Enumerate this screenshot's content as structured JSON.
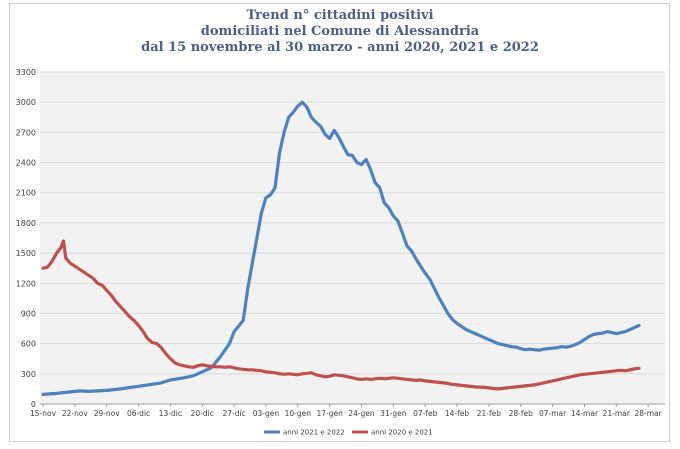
{
  "chart_data": {
    "type": "line",
    "title_lines": [
      "Trend n° cittadini positivi",
      "domiciliati nel Comune di Alessandria",
      "dal 15 novembre al 30 marzo - anni 2020, 2021 e 2022"
    ],
    "xlabel": "",
    "ylabel": "",
    "ylim": [
      0,
      3300
    ],
    "yticks": [
      0,
      300,
      600,
      900,
      1200,
      1500,
      1800,
      2100,
      2400,
      2700,
      3000,
      3300
    ],
    "x_tick_labels": [
      "15-nov",
      "22-nov",
      "29-nov",
      "06-dic",
      "13-dic",
      "20-dic",
      "27-dic",
      "03-gen",
      "10-gen",
      "17-gen",
      "24-gen",
      "31-gen",
      "07-feb",
      "14-feb",
      "21-feb",
      "28-feb",
      "07-mar",
      "14-mar",
      "21-mar",
      "28-mar"
    ],
    "x_tick_days": [
      0,
      7,
      14,
      21,
      28,
      35,
      42,
      49,
      56,
      63,
      70,
      77,
      84,
      91,
      98,
      105,
      112,
      119,
      126,
      133
    ],
    "xlim_days": [
      0,
      136
    ],
    "grid": "horizontal",
    "legend_position": "bottom",
    "series": [
      {
        "name": "anni 2021 e 2022",
        "color": "#4f81bd",
        "points": [
          [
            0,
            95
          ],
          [
            3,
            105
          ],
          [
            6,
            120
          ],
          [
            8,
            130
          ],
          [
            10,
            125
          ],
          [
            14,
            135
          ],
          [
            17,
            150
          ],
          [
            20,
            170
          ],
          [
            23,
            190
          ],
          [
            26,
            210
          ],
          [
            28,
            240
          ],
          [
            31,
            260
          ],
          [
            33,
            280
          ],
          [
            35,
            320
          ],
          [
            37,
            360
          ],
          [
            39,
            470
          ],
          [
            41,
            600
          ],
          [
            42,
            720
          ],
          [
            44,
            830
          ],
          [
            45,
            1150
          ],
          [
            46,
            1400
          ],
          [
            47,
            1650
          ],
          [
            48,
            1900
          ],
          [
            49,
            2050
          ],
          [
            50,
            2080
          ],
          [
            51,
            2150
          ],
          [
            52,
            2500
          ],
          [
            53,
            2700
          ],
          [
            54,
            2850
          ],
          [
            55,
            2900
          ],
          [
            56,
            2960
          ],
          [
            57,
            3000
          ],
          [
            58,
            2950
          ],
          [
            59,
            2850
          ],
          [
            60,
            2800
          ],
          [
            61,
            2760
          ],
          [
            62,
            2680
          ],
          [
            63,
            2640
          ],
          [
            64,
            2720
          ],
          [
            65,
            2650
          ],
          [
            66,
            2560
          ],
          [
            67,
            2480
          ],
          [
            68,
            2470
          ],
          [
            69,
            2400
          ],
          [
            70,
            2380
          ],
          [
            71,
            2430
          ],
          [
            72,
            2330
          ],
          [
            73,
            2200
          ],
          [
            74,
            2150
          ],
          [
            75,
            2000
          ],
          [
            76,
            1950
          ],
          [
            77,
            1870
          ],
          [
            78,
            1820
          ],
          [
            79,
            1700
          ],
          [
            80,
            1570
          ],
          [
            81,
            1520
          ],
          [
            82,
            1440
          ],
          [
            83,
            1370
          ],
          [
            84,
            1300
          ],
          [
            85,
            1240
          ],
          [
            86,
            1150
          ],
          [
            87,
            1060
          ],
          [
            88,
            980
          ],
          [
            89,
            900
          ],
          [
            90,
            840
          ],
          [
            91,
            800
          ],
          [
            92,
            770
          ],
          [
            93,
            740
          ],
          [
            94,
            720
          ],
          [
            95,
            700
          ],
          [
            96,
            680
          ],
          [
            97,
            660
          ],
          [
            98,
            640
          ],
          [
            99,
            620
          ],
          [
            100,
            600
          ],
          [
            101,
            590
          ],
          [
            102,
            580
          ],
          [
            103,
            570
          ],
          [
            104,
            565
          ],
          [
            105,
            550
          ],
          [
            106,
            540
          ],
          [
            107,
            545
          ],
          [
            108,
            540
          ],
          [
            109,
            535
          ],
          [
            110,
            545
          ],
          [
            111,
            550
          ],
          [
            112,
            555
          ],
          [
            113,
            560
          ],
          [
            114,
            570
          ],
          [
            115,
            565
          ],
          [
            116,
            575
          ],
          [
            117,
            590
          ],
          [
            118,
            610
          ],
          [
            119,
            640
          ],
          [
            120,
            670
          ],
          [
            121,
            690
          ],
          [
            122,
            700
          ],
          [
            123,
            705
          ],
          [
            124,
            720
          ],
          [
            125,
            710
          ],
          [
            126,
            700
          ],
          [
            127,
            710
          ],
          [
            128,
            720
          ],
          [
            129,
            740
          ],
          [
            130,
            760
          ],
          [
            131,
            780
          ]
        ]
      },
      {
        "name": "anni 2020 e 2021",
        "color": "#c0504d",
        "points": [
          [
            0,
            1350
          ],
          [
            1,
            1360
          ],
          [
            2,
            1420
          ],
          [
            3,
            1500
          ],
          [
            4,
            1560
          ],
          [
            4.5,
            1620
          ],
          [
            5,
            1450
          ],
          [
            6,
            1400
          ],
          [
            7,
            1370
          ],
          [
            8,
            1340
          ],
          [
            9,
            1310
          ],
          [
            10,
            1280
          ],
          [
            11,
            1250
          ],
          [
            12,
            1200
          ],
          [
            13,
            1180
          ],
          [
            14,
            1130
          ],
          [
            15,
            1080
          ],
          [
            16,
            1020
          ],
          [
            17,
            970
          ],
          [
            18,
            920
          ],
          [
            19,
            870
          ],
          [
            20,
            830
          ],
          [
            21,
            780
          ],
          [
            22,
            720
          ],
          [
            23,
            650
          ],
          [
            24,
            610
          ],
          [
            25,
            600
          ],
          [
            26,
            560
          ],
          [
            27,
            500
          ],
          [
            28,
            450
          ],
          [
            29,
            410
          ],
          [
            30,
            390
          ],
          [
            31,
            380
          ],
          [
            32,
            370
          ],
          [
            33,
            365
          ],
          [
            34,
            380
          ],
          [
            35,
            390
          ],
          [
            36,
            380
          ],
          [
            37,
            375
          ],
          [
            38,
            370
          ],
          [
            39,
            370
          ],
          [
            40,
            365
          ],
          [
            41,
            370
          ],
          [
            42,
            360
          ],
          [
            43,
            350
          ],
          [
            44,
            345
          ],
          [
            45,
            340
          ],
          [
            46,
            340
          ],
          [
            47,
            335
          ],
          [
            48,
            330
          ],
          [
            49,
            320
          ],
          [
            50,
            315
          ],
          [
            51,
            310
          ],
          [
            52,
            300
          ],
          [
            53,
            295
          ],
          [
            54,
            300
          ],
          [
            55,
            295
          ],
          [
            56,
            290
          ],
          [
            57,
            300
          ],
          [
            58,
            305
          ],
          [
            59,
            310
          ],
          [
            60,
            290
          ],
          [
            61,
            280
          ],
          [
            62,
            270
          ],
          [
            63,
            275
          ],
          [
            64,
            290
          ],
          [
            65,
            285
          ],
          [
            66,
            280
          ],
          [
            67,
            270
          ],
          [
            68,
            260
          ],
          [
            69,
            250
          ],
          [
            70,
            245
          ],
          [
            71,
            250
          ],
          [
            72,
            245
          ],
          [
            73,
            250
          ],
          [
            74,
            255
          ],
          [
            75,
            250
          ],
          [
            76,
            255
          ],
          [
            77,
            260
          ],
          [
            78,
            255
          ],
          [
            79,
            250
          ],
          [
            80,
            245
          ],
          [
            81,
            240
          ],
          [
            82,
            235
          ],
          [
            83,
            240
          ],
          [
            84,
            230
          ],
          [
            85,
            225
          ],
          [
            86,
            220
          ],
          [
            87,
            215
          ],
          [
            88,
            210
          ],
          [
            89,
            205
          ],
          [
            90,
            195
          ],
          [
            91,
            190
          ],
          [
            92,
            185
          ],
          [
            93,
            180
          ],
          [
            94,
            175
          ],
          [
            95,
            170
          ],
          [
            96,
            168
          ],
          [
            97,
            165
          ],
          [
            98,
            160
          ],
          [
            99,
            155
          ],
          [
            100,
            150
          ],
          [
            101,
            155
          ],
          [
            102,
            160
          ],
          [
            103,
            165
          ],
          [
            104,
            170
          ],
          [
            105,
            175
          ],
          [
            106,
            180
          ],
          [
            107,
            185
          ],
          [
            108,
            190
          ],
          [
            109,
            200
          ],
          [
            110,
            210
          ],
          [
            111,
            220
          ],
          [
            112,
            230
          ],
          [
            113,
            240
          ],
          [
            114,
            250
          ],
          [
            115,
            260
          ],
          [
            116,
            270
          ],
          [
            117,
            280
          ],
          [
            118,
            290
          ],
          [
            119,
            295
          ],
          [
            120,
            300
          ],
          [
            121,
            305
          ],
          [
            122,
            310
          ],
          [
            123,
            315
          ],
          [
            124,
            320
          ],
          [
            125,
            325
          ],
          [
            126,
            330
          ],
          [
            127,
            335
          ],
          [
            128,
            330
          ],
          [
            129,
            340
          ],
          [
            130,
            350
          ],
          [
            131,
            355
          ]
        ]
      }
    ]
  }
}
